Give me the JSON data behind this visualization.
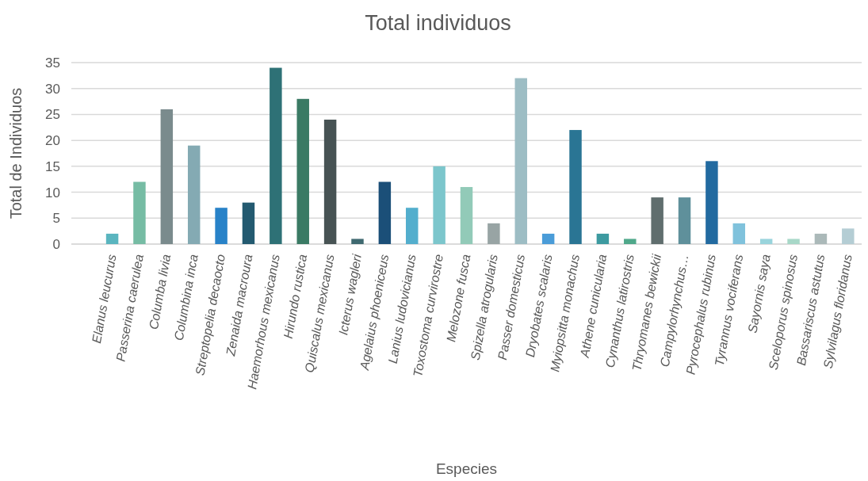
{
  "chart_data": {
    "type": "bar",
    "title": "Total individuos",
    "xlabel": "Especies",
    "ylabel": "Total de Individuos",
    "categories": [
      null,
      "Elanus leucurus",
      "Passerina caerulea",
      "Columba livia",
      "Columbina inca",
      "Streptopelia decaocto",
      "Zenaida macroura",
      "Haemorhous mexicanus",
      "Hirundo rustica",
      "Quiscalus mexicanus",
      "Icterus wagleri",
      "Agelaius phoeniceus",
      "Lanius ludovicianus",
      "Toxostoma curvirostre",
      "Melozone fusca",
      "Spizella atrogularis",
      "Passer domesticus",
      "Dryobates scalaris",
      "Myiopsitta monachus",
      "Athene cunicularia",
      "Cynanthus latirostris",
      "Thryomanes bewickii",
      "Campylorhynchus…",
      "Pyrocephalus rubinus",
      "Tyrannus vociferans",
      "Sayornis saya",
      "Sceloporus spinosus",
      "Bassariscus astutus",
      "Sylvilagus floridanus"
    ],
    "values": [
      null,
      2,
      12,
      26,
      19,
      7,
      8,
      34,
      28,
      24,
      1,
      12,
      7,
      15,
      11,
      4,
      32,
      2,
      22,
      2,
      1,
      9,
      9,
      16,
      4,
      1,
      1,
      2,
      3
    ],
    "colors": [
      null,
      "#5ab5bf",
      "#76bca4",
      "#7a8b8d",
      "#84aab3",
      "#2882c8",
      "#235a70",
      "#2e7176",
      "#3a7a64",
      "#475354",
      "#3f6970",
      "#1b4f78",
      "#53aecd",
      "#7cc6cc",
      "#92cab8",
      "#98a4a4",
      "#9dbdc4",
      "#4a9cd8",
      "#2a7594",
      "#3d9aa0",
      "#4fa88a",
      "#606e6e",
      "#5f909b",
      "#226aa0",
      "#80c2dc",
      "#99d4dc",
      "#a8d8c8",
      "#abb9b9",
      "#b4cdd4"
    ],
    "ylim": [
      0,
      35
    ],
    "yticks": [
      0,
      5,
      10,
      15,
      20,
      25,
      30,
      35
    ],
    "grid": "y"
  }
}
